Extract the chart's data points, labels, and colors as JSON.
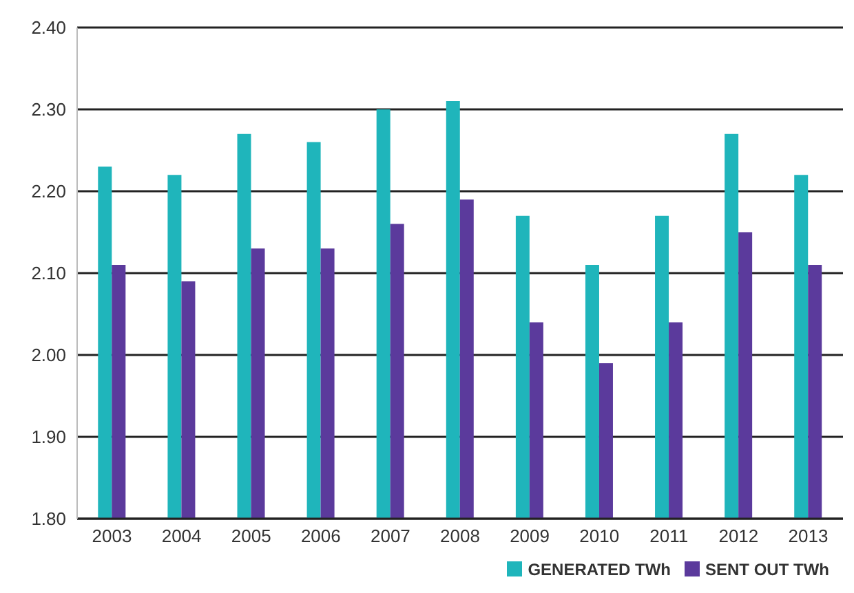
{
  "chart_data": {
    "type": "bar",
    "categories": [
      "2003",
      "2004",
      "2005",
      "2006",
      "2007",
      "2008",
      "2009",
      "2010",
      "2011",
      "2012",
      "2013"
    ],
    "series": [
      {
        "name": "GENERATED TWh",
        "color": "#1fb5bb",
        "values": [
          2.23,
          2.22,
          2.27,
          2.26,
          2.3,
          2.31,
          2.17,
          2.11,
          2.17,
          2.27,
          2.22
        ]
      },
      {
        "name": "SENT OUT TWh",
        "color": "#5b3a9c",
        "values": [
          2.11,
          2.09,
          2.13,
          2.13,
          2.16,
          2.19,
          2.04,
          1.99,
          2.04,
          2.15,
          2.11
        ]
      }
    ],
    "ylim": [
      1.8,
      2.4
    ],
    "yticks": [
      {
        "value": 1.8,
        "label": "1.80"
      },
      {
        "value": 1.9,
        "label": "1.90"
      },
      {
        "value": 2.0,
        "label": "2.00"
      },
      {
        "value": 2.1,
        "label": "2.10"
      },
      {
        "value": 2.2,
        "label": "2.20"
      },
      {
        "value": 2.3,
        "label": "2.30"
      },
      {
        "value": 2.4,
        "label": "2.40"
      }
    ],
    "grid": "y",
    "legend": "bottom right"
  }
}
